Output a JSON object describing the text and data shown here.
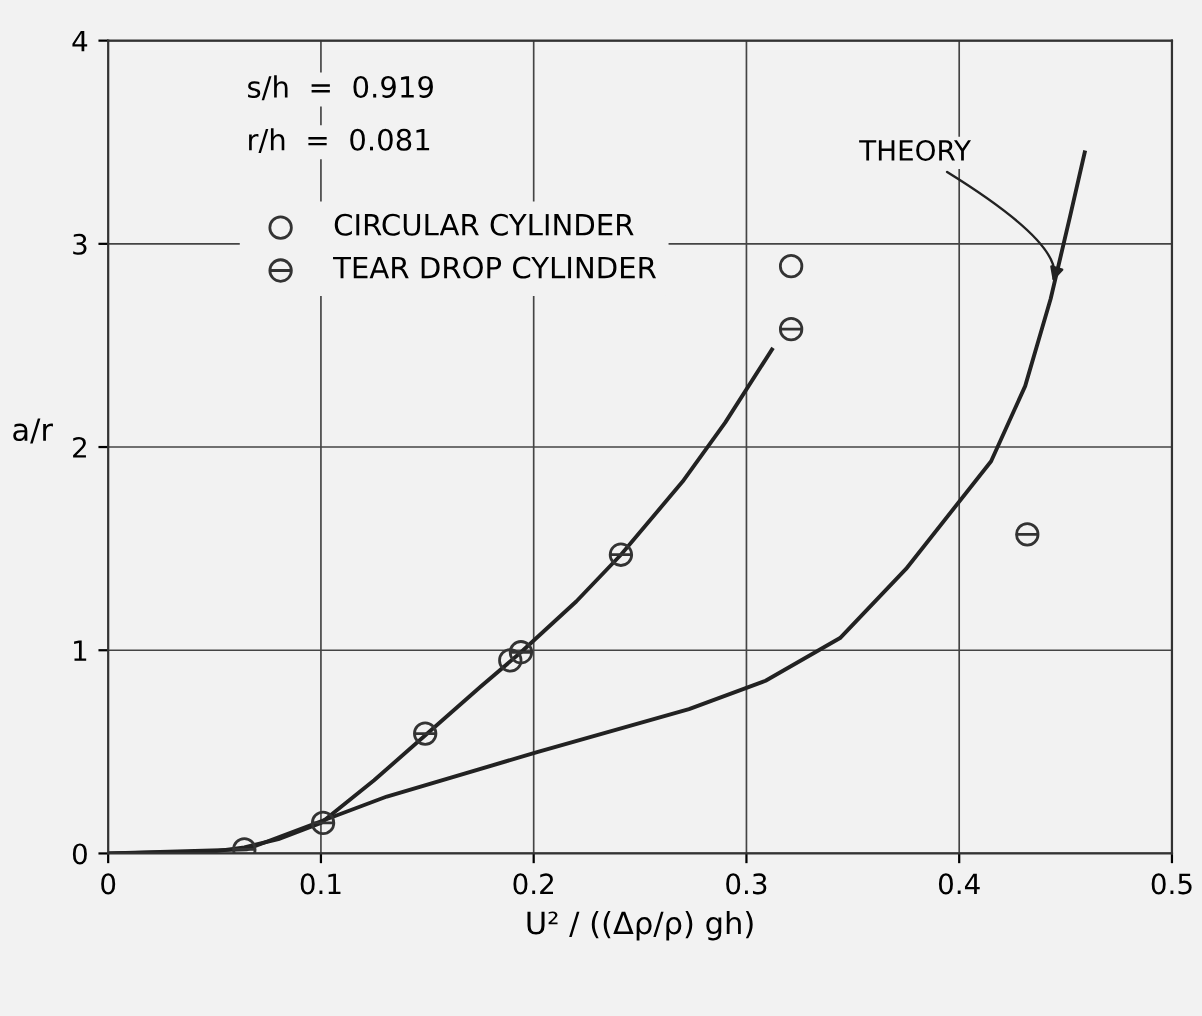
{
  "chart_data": {
    "type": "scatter",
    "xlabel": "U² / ((Δρ/ρ) gh)",
    "ylabel": "a/r",
    "xlim": [
      0,
      0.5
    ],
    "ylim": [
      0,
      4
    ],
    "xticks": [
      0,
      0.1,
      0.2,
      0.3,
      0.4,
      0.5
    ],
    "yticks": [
      0,
      1,
      2,
      3,
      4
    ],
    "grid": true,
    "legend": "top left",
    "annotations": [
      "s/h  =  0.919",
      "r/h  =  0.081",
      {
        "text": "THEORY",
        "x": 0.443,
        "y": 2.79
      }
    ],
    "series": [
      {
        "name": "CIRCULAR CYLINDER",
        "marker": "circle",
        "color": "#333333",
        "x": [
          0.189,
          0.321
        ],
        "values": [
          0.95,
          2.89
        ]
      },
      {
        "name": "TEAR DROP CYLINDER",
        "marker": "cross",
        "color": "#333333",
        "x": [
          0.064,
          0.101,
          0.149,
          0.194,
          0.241,
          0.321,
          0.432
        ],
        "values": [
          0.02,
          0.15,
          0.59,
          0.99,
          1.47,
          2.58,
          1.57
        ]
      },
      {
        "type": "line",
        "color": "#222222",
        "x": [
          0,
          0.05,
          0.064,
          0.08,
          0.1,
          0.125,
          0.15,
          0.175,
          0.194,
          0.22,
          0.241,
          0.27,
          0.29,
          0.312
        ],
        "values": [
          0,
          0.01,
          0.03,
          0.07,
          0.15,
          0.36,
          0.59,
          0.82,
          0.99,
          1.24,
          1.47,
          1.83,
          2.12,
          2.48
        ]
      },
      {
        "type": "line",
        "color": "#222222",
        "x": [
          0,
          0.065,
          0.131,
          0.202,
          0.273,
          0.309,
          0.344,
          0.375,
          0.415,
          0.431,
          0.443,
          0.452,
          0.459
        ],
        "values": [
          0,
          0.02,
          0.28,
          0.5,
          0.71,
          0.85,
          1.06,
          1.4,
          1.93,
          2.3,
          2.73,
          3.13,
          3.45
        ]
      }
    ]
  }
}
